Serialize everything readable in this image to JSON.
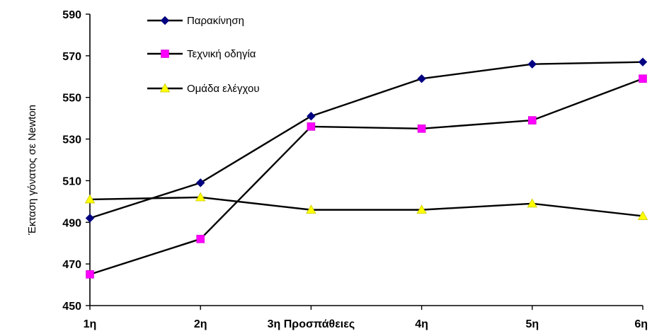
{
  "chart_data": {
    "type": "line",
    "categories": [
      "1η",
      "2η",
      "3η Προσπάθειες",
      "4η",
      "5η",
      "6η"
    ],
    "ylabel": "Έκταση γόνατος σε Newton",
    "ylim": [
      450,
      590
    ],
    "yticks": [
      "450",
      "470",
      "490",
      "510",
      "530",
      "550",
      "570",
      "590"
    ],
    "grid": false,
    "legend_position": "top-left",
    "series": [
      {
        "name": "Παρακίνηση",
        "values": [
          492,
          509,
          541,
          559,
          566,
          567
        ],
        "color": "#000080",
        "marker": "diamond"
      },
      {
        "name": "Τεχνική οδηγία",
        "values": [
          465,
          482,
          536,
          535,
          539,
          559
        ],
        "color": "#ff00ff",
        "marker": "square"
      },
      {
        "name": "Ομάδα ελέγχου",
        "values": [
          501,
          502,
          496,
          496,
          499,
          493
        ],
        "color": "#ffff00",
        "marker": "triangle"
      }
    ]
  }
}
